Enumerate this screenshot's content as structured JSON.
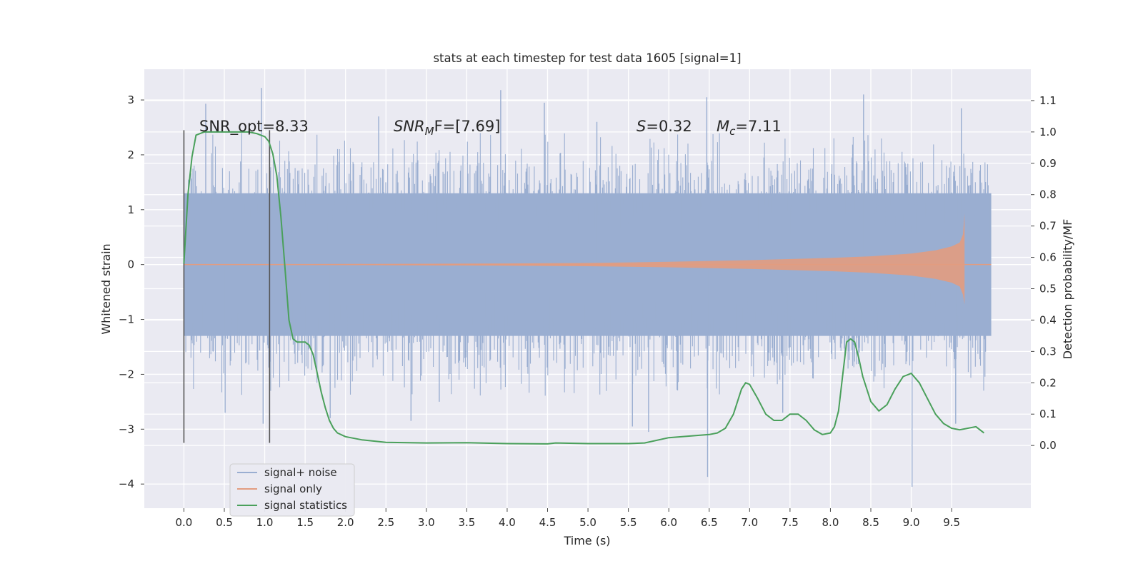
{
  "chart_data": {
    "type": "line",
    "title": "stats at each timestep for test data 1605 [signal=1]",
    "xlabel": "Time (s)",
    "ylabel": "Whitened strain",
    "y2label": "Detection probability/MF",
    "xlim": [
      -0.49,
      10.48
    ],
    "ylim": [
      -4.44,
      3.56
    ],
    "y2lim": [
      -0.2,
      1.2
    ],
    "x_ticks": [
      0.0,
      0.5,
      1.0,
      1.5,
      2.0,
      2.5,
      3.0,
      3.5,
      4.0,
      4.5,
      5.0,
      5.5,
      6.0,
      6.5,
      7.0,
      7.5,
      8.0,
      8.5,
      9.0,
      9.5
    ],
    "x_tick_labels": [
      "0.0",
      "0.5",
      "1.0",
      "1.5",
      "2.0",
      "2.5",
      "3.0",
      "3.5",
      "4.0",
      "4.5",
      "5.0",
      "5.5",
      "6.0",
      "6.5",
      "7.0",
      "7.5",
      "8.0",
      "8.5",
      "9.0",
      "9.5"
    ],
    "y_ticks": [
      3,
      2,
      1,
      0,
      -1,
      -2,
      -3,
      -4
    ],
    "y_tick_labels": [
      "3",
      "2",
      "1",
      "0",
      "−1",
      "−2",
      "−3",
      "−4"
    ],
    "y2_ticks": [
      1.1,
      1.0,
      0.9,
      0.8,
      0.7,
      0.6,
      0.5,
      0.4,
      0.3,
      0.2,
      0.1,
      0.0
    ],
    "y2_tick_labels": [
      "1.1",
      "1.0",
      "0.9",
      "0.8",
      "0.7",
      "0.6",
      "0.5",
      "0.4",
      "0.3",
      "0.2",
      "0.1",
      "0.0"
    ],
    "grid": true,
    "legend_placement": "lower-left",
    "annotations": {
      "snr_opt": "SNR_opt=8.33",
      "snr_mf_main": "SNR",
      "snr_mf_sub": "M",
      "snr_mf_rest": "F=[7.69]",
      "s_main": "S",
      "s_rest": "=0.32",
      "mc_main": "M",
      "mc_sub": "c",
      "mc_rest": "=7.11"
    },
    "vertical_markers": {
      "x": [
        0.0,
        1.06
      ],
      "y_range": [
        -3.25,
        2.45
      ],
      "color": "#555555"
    },
    "series": [
      {
        "name": "signal+ noise",
        "color": "#9aaed1",
        "axis": "left",
        "x_range": [
          0.0,
          9.99
        ],
        "typical_envelope": [
          -1.3,
          1.3
        ],
        "max_envelope": [
          -2.4,
          2.4
        ],
        "spikes": [
          {
            "x": 0.27,
            "y": 2.93
          },
          {
            "x": 0.96,
            "y": 3.22
          },
          {
            "x": 0.98,
            "y": -2.9
          },
          {
            "x": 0.51,
            "y": -2.7
          },
          {
            "x": 3.92,
            "y": 3.18
          },
          {
            "x": 5.55,
            "y": -2.95
          },
          {
            "x": 5.75,
            "y": -3.05
          },
          {
            "x": 6.47,
            "y": 3.05
          },
          {
            "x": 6.48,
            "y": -3.87
          },
          {
            "x": 8.41,
            "y": 3.1
          },
          {
            "x": 9.01,
            "y": -4.05
          },
          {
            "x": 9.55,
            "y": -2.9
          },
          {
            "x": 9.62,
            "y": 2.85
          },
          {
            "x": 1.81,
            "y": -2.8
          },
          {
            "x": 2.81,
            "y": -2.85
          },
          {
            "x": 4.46,
            "y": 2.95
          },
          {
            "x": 2.41,
            "y": 2.7
          },
          {
            "x": 5.11,
            "y": 2.6
          },
          {
            "x": 7.41,
            "y": -2.7
          },
          {
            "x": 3.16,
            "y": -2.5
          }
        ]
      },
      {
        "name": "signal only",
        "color": "#e29c80",
        "axis": "left",
        "x_range": [
          0.0,
          9.99
        ],
        "chirp_end": 9.66,
        "x": [
          0.0,
          2.0,
          4.0,
          5.0,
          6.0,
          7.0,
          8.0,
          8.5,
          9.0,
          9.3,
          9.5,
          9.6,
          9.64,
          9.66
        ],
        "amplitude": [
          0.005,
          0.01,
          0.02,
          0.03,
          0.05,
          0.08,
          0.12,
          0.15,
          0.2,
          0.26,
          0.33,
          0.4,
          0.55,
          0.93
        ]
      },
      {
        "name": "signal statistics",
        "color": "#4aa05b",
        "axis": "right",
        "x": [
          0.0,
          0.05,
          0.1,
          0.15,
          0.25,
          0.4,
          0.6,
          0.8,
          0.9,
          0.95,
          1.0,
          1.05,
          1.1,
          1.15,
          1.2,
          1.25,
          1.3,
          1.35,
          1.4,
          1.45,
          1.5,
          1.55,
          1.6,
          1.65,
          1.7,
          1.75,
          1.8,
          1.85,
          1.9,
          2.0,
          2.2,
          2.5,
          3.0,
          3.5,
          4.0,
          4.5,
          4.6,
          5.0,
          5.5,
          5.7,
          6.0,
          6.5,
          6.6,
          6.7,
          6.8,
          6.9,
          6.95,
          7.0,
          7.1,
          7.2,
          7.3,
          7.4,
          7.5,
          7.6,
          7.7,
          7.8,
          7.9,
          8.0,
          8.05,
          8.1,
          8.15,
          8.2,
          8.25,
          8.3,
          8.35,
          8.4,
          8.5,
          8.6,
          8.7,
          8.8,
          8.9,
          9.0,
          9.1,
          9.2,
          9.3,
          9.4,
          9.5,
          9.6,
          9.7,
          9.8,
          9.9
        ],
        "values": [
          0.58,
          0.8,
          0.92,
          0.99,
          1.0,
          1.0,
          1.0,
          1.0,
          0.995,
          0.99,
          0.985,
          0.97,
          0.93,
          0.86,
          0.73,
          0.57,
          0.4,
          0.34,
          0.33,
          0.33,
          0.33,
          0.32,
          0.29,
          0.23,
          0.17,
          0.12,
          0.08,
          0.055,
          0.04,
          0.028,
          0.018,
          0.01,
          0.008,
          0.009,
          0.006,
          0.005,
          0.008,
          0.006,
          0.006,
          0.008,
          0.025,
          0.035,
          0.04,
          0.055,
          0.1,
          0.18,
          0.2,
          0.195,
          0.15,
          0.1,
          0.08,
          0.08,
          0.1,
          0.1,
          0.08,
          0.05,
          0.035,
          0.04,
          0.06,
          0.11,
          0.22,
          0.33,
          0.34,
          0.33,
          0.28,
          0.22,
          0.14,
          0.11,
          0.13,
          0.18,
          0.22,
          0.23,
          0.2,
          0.15,
          0.1,
          0.07,
          0.055,
          0.05,
          0.055,
          0.06,
          0.04
        ]
      }
    ]
  }
}
